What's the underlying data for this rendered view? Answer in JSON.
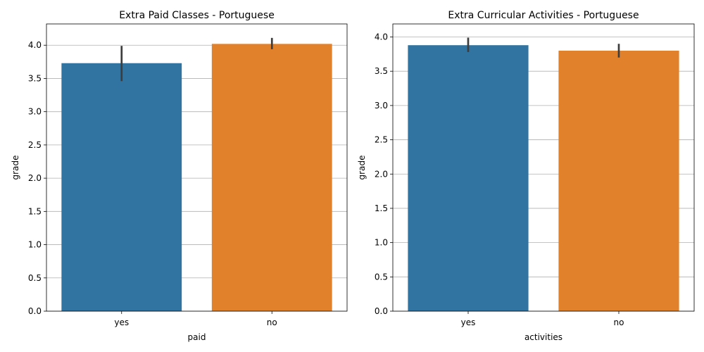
{
  "chart_data": [
    {
      "type": "bar",
      "title": "Extra Paid Classes - Portuguese",
      "xlabel": "paid",
      "ylabel": "grade",
      "categories": [
        "yes",
        "no"
      ],
      "values": [
        3.73,
        4.02
      ],
      "error_low": [
        3.46,
        3.94
      ],
      "error_high": [
        3.99,
        4.11
      ],
      "colors": [
        "#3274a1",
        "#e1812c"
      ],
      "ylim": [
        0,
        4.32
      ],
      "yticks": [
        0.0,
        0.5,
        1.0,
        1.5,
        2.0,
        2.5,
        3.0,
        3.5,
        4.0
      ],
      "ytick_labels": [
        "0.0",
        "0.5",
        "1.0",
        "1.5",
        "2.0",
        "2.5",
        "3.0",
        "3.5",
        "4.0"
      ],
      "grid": "y"
    },
    {
      "type": "bar",
      "title": "Extra Curricular Activities - Portuguese",
      "xlabel": "activities",
      "ylabel": "grade",
      "categories": [
        "yes",
        "no"
      ],
      "values": [
        3.88,
        3.8
      ],
      "error_low": [
        3.78,
        3.7
      ],
      "error_high": [
        3.99,
        3.9
      ],
      "colors": [
        "#3274a1",
        "#e1812c"
      ],
      "ylim": [
        0,
        4.19
      ],
      "yticks": [
        0.0,
        0.5,
        1.0,
        1.5,
        2.0,
        2.5,
        3.0,
        3.5,
        4.0
      ],
      "ytick_labels": [
        "0.0",
        "0.5",
        "1.0",
        "1.5",
        "2.0",
        "2.5",
        "3.0",
        "3.5",
        "4.0"
      ],
      "grid": "y"
    }
  ]
}
